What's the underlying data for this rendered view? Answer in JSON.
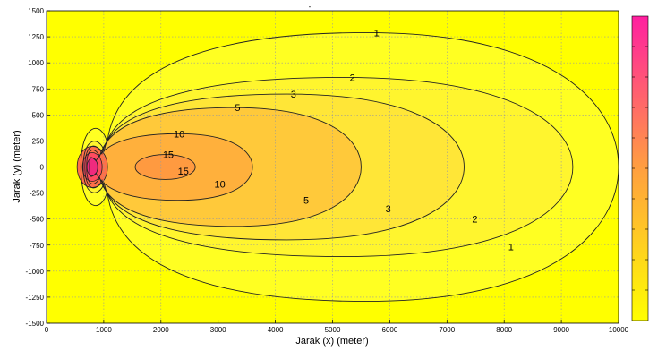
{
  "chart_data": {
    "type": "contour",
    "title": "-",
    "xlabel": "Jarak (x) (meter)",
    "ylabel": "Jarak (y) (meter)",
    "xlim": [
      0,
      10000
    ],
    "ylim": [
      -1500,
      1500
    ],
    "grid": true,
    "colormap": "spring",
    "colorbar": "right",
    "x_ticks": [
      "0",
      "1000",
      "2000",
      "3000",
      "4000",
      "5000",
      "6000",
      "7000",
      "8000",
      "9000",
      "10000"
    ],
    "y_ticks": [
      "1500",
      "1250",
      "1000",
      "750",
      "500",
      "250",
      "0",
      "-250",
      "-500",
      "-750",
      "-1000",
      "-1250",
      "-1500"
    ],
    "source_x": 800,
    "source_y": 0,
    "levels": [
      {
        "value": 1,
        "label": "1",
        "color": "#ffff22",
        "x_start": 600,
        "x_end": 10000,
        "y_half": 1290
      },
      {
        "value": 2,
        "label": "2",
        "color": "#fff52e",
        "x_start": 640,
        "x_end": 9200,
        "y_half": 860
      },
      {
        "value": 3,
        "label": "3",
        "color": "#ffe637",
        "x_start": 670,
        "x_end": 7300,
        "y_half": 700
      },
      {
        "value": 5,
        "label": "5",
        "color": "#ffc93a",
        "x_start": 700,
        "x_end": 5500,
        "y_half": 570
      },
      {
        "value": 10,
        "label": "10",
        "color": "#ffb03c",
        "x_start": 750,
        "x_end": 3600,
        "y_half": 320
      },
      {
        "value": 15,
        "label": "15",
        "color": "#ff9a40",
        "x_start": 1550,
        "x_end": 2600,
        "y_half": 120
      }
    ],
    "colors": {
      "background": "#ffff00",
      "near_source_1": "#ff7048",
      "near_source_2": "#ff4c60",
      "near_source_3": "#f02a7e"
    }
  }
}
